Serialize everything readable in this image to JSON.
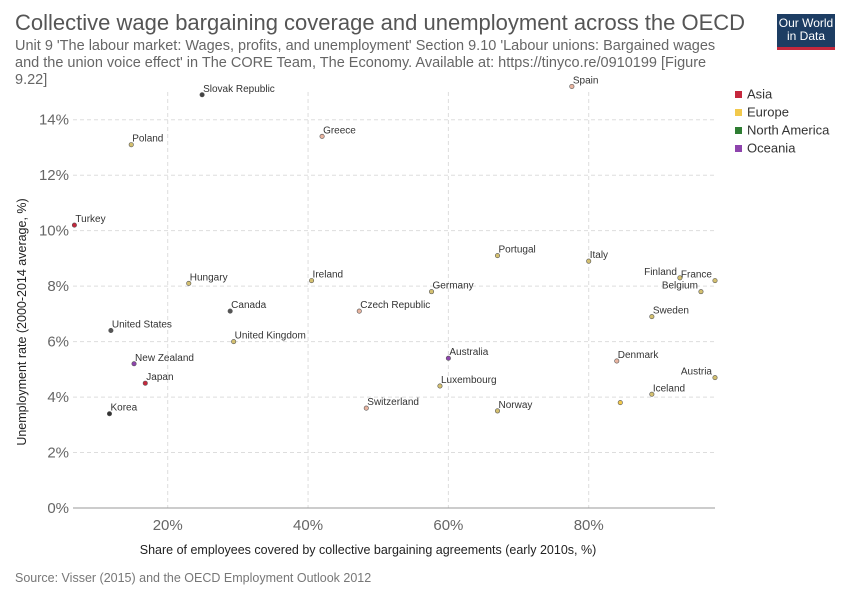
{
  "header": {
    "title": "Collective wage bargaining coverage and unemployment across the OECD",
    "subtitle": "Unit 9 'The labour market: Wages, profits, and unemployment' Section 9.10 'Labour unions: Bargained wages and the union voice effect' in The CORE Team, The Economy. Available at: https://tinyco.re/0910199 [Figure 9.22]",
    "logo_line1": "Our World",
    "logo_line2": "in Data"
  },
  "footer": {
    "source": "Source: Visser (2015) and the OECD Employment Outlook 2012"
  },
  "chart_data": {
    "type": "scatter",
    "xlabel": "Share of employees covered by collective bargaining agreements (early 2010s, %)",
    "ylabel": "Unemployment rate (2000-2014 average, %)",
    "xlim": [
      6.5,
      98
    ],
    "ylim": [
      0,
      15
    ],
    "x_ticks": [
      20,
      40,
      60,
      80
    ],
    "x_tick_labels": [
      "20%",
      "40%",
      "60%",
      "80%"
    ],
    "y_ticks": [
      0,
      2,
      4,
      6,
      8,
      10,
      12,
      14
    ],
    "y_tick_labels": [
      "0%",
      "2%",
      "4%",
      "6%",
      "8%",
      "10%",
      "12%",
      "14%"
    ],
    "grid": true,
    "legend_position": "top-right",
    "legend": [
      {
        "name": "Asia",
        "color": "#c5283d"
      },
      {
        "name": "Europe",
        "color": "#f2c94c"
      },
      {
        "name": "North America",
        "color": "#2e7d32"
      },
      {
        "name": "Oceania",
        "color": "#8e44ad"
      }
    ],
    "points": [
      {
        "label": "Slovak Republic",
        "x": 24.9,
        "y": 14.9,
        "color": "#444444"
      },
      {
        "label": "Spain",
        "x": 77.6,
        "y": 15.2,
        "color": "#e8b4a0"
      },
      {
        "label": "Greece",
        "x": 42.0,
        "y": 13.4,
        "color": "#e8b4a0"
      },
      {
        "label": "Poland",
        "x": 14.8,
        "y": 13.1,
        "color": "#d4c070"
      },
      {
        "label": "Turkey",
        "x": 6.7,
        "y": 10.2,
        "color": "#c5283d"
      },
      {
        "label": "Portugal",
        "x": 67.0,
        "y": 9.1,
        "color": "#d4c070"
      },
      {
        "label": "Italy",
        "x": 80.0,
        "y": 8.9,
        "color": "#d4c070"
      },
      {
        "label": "Finland",
        "x": 93.0,
        "y": 8.3,
        "color": "#d4c070"
      },
      {
        "label": "France",
        "x": 98.0,
        "y": 8.2,
        "color": "#d4c070"
      },
      {
        "label": "Belgium",
        "x": 96.0,
        "y": 7.8,
        "color": "#d4c070"
      },
      {
        "label": "Hungary",
        "x": 23.0,
        "y": 8.1,
        "color": "#d4c070"
      },
      {
        "label": "Ireland",
        "x": 40.5,
        "y": 8.2,
        "color": "#d4c070"
      },
      {
        "label": "Germany",
        "x": 57.6,
        "y": 7.8,
        "color": "#d4c070"
      },
      {
        "label": "Czech Republic",
        "x": 47.3,
        "y": 7.1,
        "color": "#e8b4a0"
      },
      {
        "label": "Canada",
        "x": 28.9,
        "y": 7.1,
        "color": "#555555"
      },
      {
        "label": "Sweden",
        "x": 89.0,
        "y": 6.9,
        "color": "#d4c070"
      },
      {
        "label": "United Kingdom",
        "x": 29.4,
        "y": 6.0,
        "color": "#d4c070"
      },
      {
        "label": "United States",
        "x": 11.9,
        "y": 6.4,
        "color": "#555555"
      },
      {
        "label": "New Zealand",
        "x": 15.2,
        "y": 5.2,
        "color": "#8e44ad"
      },
      {
        "label": "Australia",
        "x": 60.0,
        "y": 5.4,
        "color": "#8e44ad"
      },
      {
        "label": "Denmark",
        "x": 84.0,
        "y": 5.3,
        "color": "#e8b4a0"
      },
      {
        "label": "Japan",
        "x": 16.8,
        "y": 4.5,
        "color": "#c5283d"
      },
      {
        "label": "Luxembourg",
        "x": 58.8,
        "y": 4.4,
        "color": "#d4c070"
      },
      {
        "label": "Austria",
        "x": 98.0,
        "y": 4.7,
        "color": "#d4c070"
      },
      {
        "label": "Iceland",
        "x": 89.0,
        "y": 4.1,
        "color": "#d4c070"
      },
      {
        "label": "Korea",
        "x": 11.7,
        "y": 3.4,
        "color": "#333333"
      },
      {
        "label": "Switzerland",
        "x": 48.3,
        "y": 3.6,
        "color": "#e8b4a0"
      },
      {
        "label": "Norway",
        "x": 67.0,
        "y": 3.5,
        "color": "#d4c070"
      },
      {
        "label": "",
        "x": 84.5,
        "y": 3.8,
        "color": "#f2c94c"
      }
    ]
  }
}
